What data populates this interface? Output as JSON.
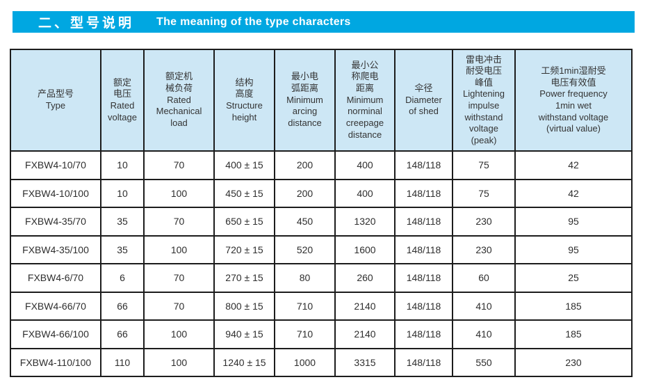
{
  "title": {
    "zh": "二、型号说明",
    "en": "The meaning of the type characters"
  },
  "colors": {
    "title_bar_bg": "#00a7e1",
    "title_text": "#ffffff",
    "header_cell_bg": "#cde7f5",
    "table_border": "#1c1c1c",
    "cell_text": "#2e2e2e"
  },
  "table": {
    "columns": [
      {
        "zh": "产品型号",
        "en": "Type"
      },
      {
        "zh": "额定\n电压",
        "en": "Rated\nvoltage"
      },
      {
        "zh": "额定机\n械负荷",
        "en": "Rated\nMechanical\nload"
      },
      {
        "zh": "结构\n高度",
        "en": "Structure\nheight"
      },
      {
        "zh": "最小电\n弧距离",
        "en": "Minimum\narcing\ndistance"
      },
      {
        "zh": "最小公\n称爬电\n距离",
        "en": "Minimum\nnorminal\ncreepage\ndistance"
      },
      {
        "zh": "伞径",
        "en": "Diameter\nof shed"
      },
      {
        "zh": "雷电冲击\n耐受电压\n峰值",
        "en": "Lightening\nimpulse\nwithstand\nvoltage\n(peak)"
      },
      {
        "zh": "工频1min湿耐受\n电压有效值",
        "en": "Power frequency\n1min wet\nwithstand voltage\n(virtual value)"
      }
    ],
    "rows": [
      [
        "FXBW4-10/70",
        "10",
        "70",
        "400 ± 15",
        "200",
        "400",
        "148/118",
        "75",
        "42"
      ],
      [
        "FXBW4-10/100",
        "10",
        "100",
        "450 ± 15",
        "200",
        "400",
        "148/118",
        "75",
        "42"
      ],
      [
        "FXBW4-35/70",
        "35",
        "70",
        "650 ± 15",
        "450",
        "1320",
        "148/118",
        "230",
        "95"
      ],
      [
        "FXBW4-35/100",
        "35",
        "100",
        "720 ± 15",
        "520",
        "1600",
        "148/118",
        "230",
        "95"
      ],
      [
        "FXBW4-6/70",
        "6",
        "70",
        "270 ± 15",
        "80",
        "260",
        "148/118",
        "60",
        "25"
      ],
      [
        "FXBW4-66/70",
        "66",
        "70",
        "800 ± 15",
        "710",
        "2140",
        "148/118",
        "410",
        "185"
      ],
      [
        "FXBW4-66/100",
        "66",
        "100",
        "940 ± 15",
        "710",
        "2140",
        "148/118",
        "410",
        "185"
      ],
      [
        "FXBW4-110/100",
        "110",
        "100",
        "1240 ± 15",
        "1000",
        "3315",
        "148/118",
        "550",
        "230"
      ]
    ]
  }
}
